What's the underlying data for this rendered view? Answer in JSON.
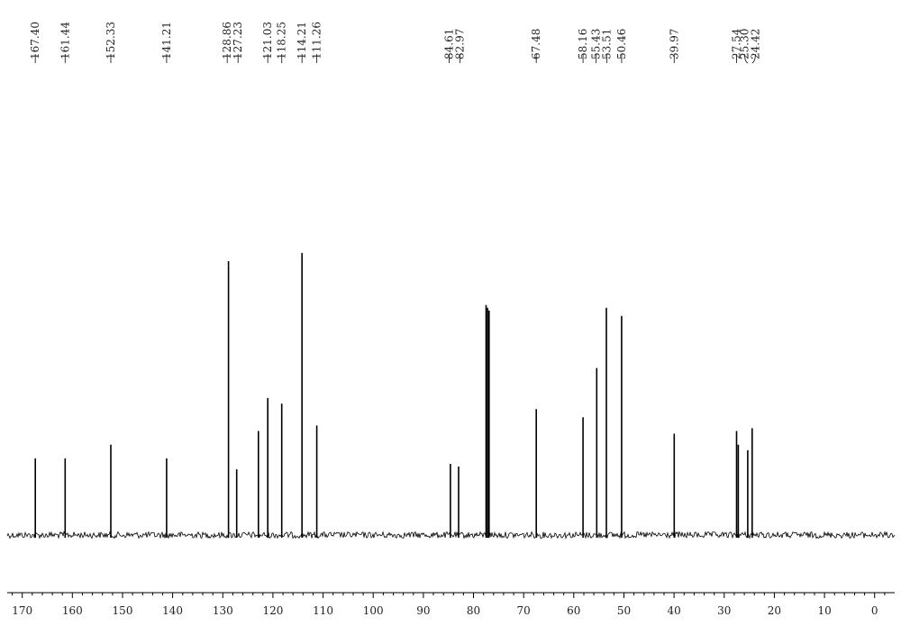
{
  "chart_data": {
    "type": "line",
    "subtype": "13C NMR spectrum",
    "title": "",
    "xlabel": "",
    "ylabel": "",
    "xlim": [
      173,
      -4
    ],
    "x_reversed": true,
    "ylim": [
      0,
      1
    ],
    "grid": false,
    "legend": "none",
    "line_color": "#000000",
    "x_ticks": [
      170,
      160,
      150,
      140,
      130,
      120,
      110,
      100,
      90,
      80,
      70,
      60,
      50,
      40,
      30,
      20,
      10,
      0
    ],
    "peak_labels": [
      "167.40",
      "161.44",
      "152.33",
      "141.21",
      "128.86",
      "127.23",
      "121.03",
      "118.25",
      "114.21",
      "111.26",
      "84.61",
      "82.97",
      "67.48",
      "58.16",
      "55.43",
      "53.51",
      "50.46",
      "39.97",
      "27.54",
      "25.30",
      "24.42"
    ],
    "peaks": [
      {
        "ppm": 167.4,
        "height": 0.28
      },
      {
        "ppm": 161.44,
        "height": 0.28
      },
      {
        "ppm": 152.33,
        "height": 0.33
      },
      {
        "ppm": 141.21,
        "height": 0.28
      },
      {
        "ppm": 128.86,
        "height": 1.0
      },
      {
        "ppm": 127.23,
        "height": 0.24
      },
      {
        "ppm": 122.9,
        "height": 0.38
      },
      {
        "ppm": 121.03,
        "height": 0.5
      },
      {
        "ppm": 118.25,
        "height": 0.48
      },
      {
        "ppm": 114.21,
        "height": 1.03
      },
      {
        "ppm": 111.26,
        "height": 0.4
      },
      {
        "ppm": 84.61,
        "height": 0.26
      },
      {
        "ppm": 82.97,
        "height": 0.25
      },
      {
        "ppm": 77.5,
        "height": 0.84
      },
      {
        "ppm": 77.2,
        "height": 0.83
      },
      {
        "ppm": 76.9,
        "height": 0.82
      },
      {
        "ppm": 67.48,
        "height": 0.46
      },
      {
        "ppm": 58.16,
        "height": 0.43
      },
      {
        "ppm": 55.43,
        "height": 0.61
      },
      {
        "ppm": 53.51,
        "height": 0.83
      },
      {
        "ppm": 50.46,
        "height": 0.8
      },
      {
        "ppm": 39.97,
        "height": 0.37
      },
      {
        "ppm": 27.54,
        "height": 0.38
      },
      {
        "ppm": 27.2,
        "height": 0.33
      },
      {
        "ppm": 25.3,
        "height": 0.31
      },
      {
        "ppm": 24.42,
        "height": 0.39
      }
    ]
  }
}
